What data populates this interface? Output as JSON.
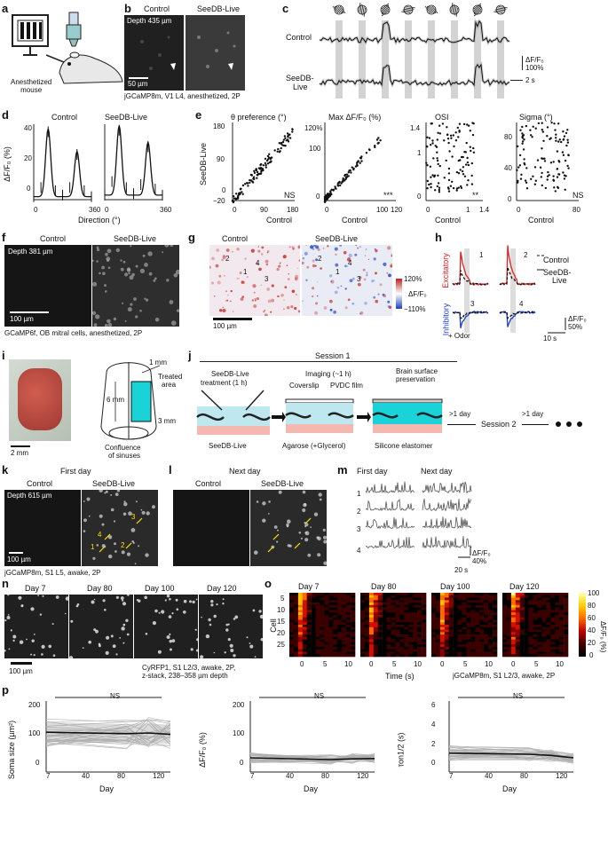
{
  "panels": {
    "a": {
      "label": "a",
      "caption": "Anesthetized\nmouse"
    },
    "b": {
      "label": "b",
      "col_left": "Control",
      "col_right": "SeeDB-Live",
      "depth": "Depth 435 µm",
      "scale": "50 µm",
      "caption": "jGCaMP8m, V1 L4, anesthetized, 2P"
    },
    "c": {
      "label": "c",
      "row1": "Control",
      "row2": "SeeDB-",
      "row2b": "Live",
      "scale_y": "ΔF/F₀",
      "scale_y2": "100%",
      "scale_x": "2 s"
    },
    "d": {
      "label": "d",
      "title_left": "Control",
      "title_right": "SeeDB-Live",
      "ylabel": "ΔF/F₀ (%)",
      "xlabel": "Direction (°)",
      "y_ticks": [
        "0",
        "20",
        "40"
      ],
      "x_ticks": [
        "0",
        "360"
      ]
    },
    "e": {
      "label": "e",
      "ylabel": "SeeDB-Live",
      "xlabel": "Control",
      "sub": [
        {
          "title": "θ preference (°)",
          "y_ticks": [
            "180",
            "90",
            "0",
            "−20"
          ],
          "x_ticks": [
            "0",
            "90",
            "180"
          ],
          "sig": "NS"
        },
        {
          "title": "Max ΔF/F₀ (%)",
          "y_ticks": [
            "120%",
            "100",
            "0"
          ],
          "x_ticks": [
            "0",
            "100",
            "120"
          ],
          "sig": "***"
        },
        {
          "title": "OSI",
          "y_ticks": [
            "1.4",
            "1",
            "0"
          ],
          "x_ticks": [
            "0",
            "1",
            "1.4"
          ],
          "sig": "**"
        },
        {
          "title": "Sigma (°)",
          "y_ticks": [
            "80",
            "40",
            "0"
          ],
          "x_ticks": [
            "0",
            "80"
          ],
          "sig": "NS"
        }
      ]
    },
    "f": {
      "label": "f",
      "col_left": "Control",
      "col_right": "SeeDB-Live",
      "depth": "Depth 381 µm",
      "scale": "100 µm",
      "caption": "GCaMP6f, OB mitral cells, anesthetized, 2P"
    },
    "g": {
      "label": "g",
      "col_left": "Control",
      "col_right": "SeeDB-Live",
      "scale": "100 µm",
      "cbar_top": "120%",
      "cbar_bottom": "−110%",
      "cbar_label": "ΔF/F₀",
      "cells": [
        "1",
        "2",
        "3",
        "4"
      ]
    },
    "h": {
      "label": "h",
      "legend_control": "Control",
      "legend_seedb": "SeeDB-",
      "legend_seedb2": "Live",
      "excitatory": "Excitatory",
      "inhibitory": "Inhibitory",
      "odor": "+ Odor",
      "scale_y": "ΔF/F₀",
      "scale_y2": "50%",
      "scale_x": "10 s",
      "cells": [
        "1",
        "2",
        "3",
        "4"
      ]
    },
    "i": {
      "label": "i",
      "scale": "2 mm",
      "dim1": "1 mm",
      "dim2": "6 mm",
      "dim3": "3 mm",
      "treated": "Treated",
      "treated2": "area",
      "sinus": "Confluence",
      "sinus2": "of sinuses"
    },
    "j": {
      "label": "j",
      "session1": "Session 1",
      "step1": "SeeDB-Live",
      "step1b": "treatment (1 h)",
      "step2": "Imaging (~1 h)",
      "step3": "Brain surface",
      "step3b": "preservation",
      "coverslip": "Coverslip",
      "pvdc": "PVDC film",
      "seedb": "SeeDB-Live",
      "agarose": "Agarose (+Glycerol)",
      "silicone": "Silicone elastomer",
      "gap1": ">1 day",
      "gap2": ">1 day",
      "session2": "Session 2"
    },
    "k": {
      "label": "k",
      "title": "First day",
      "col_left": "Control",
      "col_right": "SeeDB-Live",
      "depth": "Depth 615 µm",
      "scale": "100 µm",
      "caption": "jGCaMP8m, S1 L5, awake, 2P",
      "cells": [
        "3",
        "4",
        "1",
        "2"
      ]
    },
    "l": {
      "label": "l",
      "title": "Next day",
      "col_left": "Control",
      "col_right": "SeeDB-Live"
    },
    "m": {
      "label": "m",
      "first": "First day",
      "next": "Next day",
      "rows": [
        "1",
        "2",
        "3",
        "4"
      ],
      "scale_y": "ΔF/F₀",
      "scale_y2": "40%",
      "scale_x": "20 s"
    },
    "n": {
      "label": "n",
      "days": [
        "Day 7",
        "Day 80",
        "Day 100",
        "Day 120"
      ],
      "scale": "100 µm",
      "caption1": "CyRFP1, S1 L2/3, awake, 2P,",
      "caption2": "z-stack, 238–358 µm depth"
    },
    "o": {
      "label": "o",
      "days": [
        "Day 7",
        "Day 80",
        "Day 100",
        "Day 120"
      ],
      "ylabel": "Cell",
      "y_ticks": [
        "5",
        "10",
        "15",
        "20",
        "25"
      ],
      "x_ticks": [
        "0",
        "5",
        "10"
      ],
      "xlabel": "Time (s)",
      "caption": "jGCaMP8m, S1 L2/3, awake, 2P",
      "cbar_ticks": [
        "100",
        "80",
        "60",
        "40",
        "20",
        "0"
      ],
      "cbar_label": "ΔF/F₀ (%)"
    },
    "p": {
      "label": "p",
      "xlabel": "Day",
      "x_ticks": [
        "7",
        "40",
        "80",
        "120"
      ],
      "sub": [
        {
          "ylabel": "Soma size (µm²)",
          "y_ticks": [
            "200",
            "100",
            "0"
          ],
          "sig": "NS"
        },
        {
          "ylabel": "ΔF/F₀ (%)",
          "y_ticks": [
            "200",
            "100",
            "0"
          ],
          "sig": "NS"
        },
        {
          "ylabel": "τon1/2 (s)",
          "y_ticks": [
            "6",
            "4",
            "2",
            "0"
          ],
          "sig": "NS"
        }
      ]
    }
  },
  "colors": {
    "excitatory": "#e02020",
    "inhibitory": "#1a3fd6",
    "cyan": "#19d3d9",
    "pink": "#f3b3b3",
    "yellow": "#ffe100"
  },
  "chart_data": [
    {
      "type": "line",
      "panel": "d-control",
      "x": [
        0,
        45,
        90,
        135,
        180,
        225,
        270,
        315,
        360
      ],
      "y": [
        2,
        8,
        45,
        6,
        3,
        8,
        30,
        6,
        2
      ],
      "xlabel": "Direction (°)",
      "ylabel": "ΔF/F₀ (%)"
    },
    {
      "type": "line",
      "panel": "d-seedb",
      "x": [
        0,
        45,
        90,
        135,
        180,
        225,
        270,
        315,
        360
      ],
      "y": [
        3,
        12,
        46,
        8,
        4,
        10,
        35,
        7,
        3
      ],
      "xlabel": "Direction (°)",
      "ylabel": "ΔF/F₀ (%)"
    },
    {
      "type": "line",
      "panel": "p-soma",
      "x": [
        7,
        80,
        100,
        120
      ],
      "y": [
        112,
        108,
        110,
        106
      ],
      "ylim": [
        0,
        200
      ]
    },
    {
      "type": "line",
      "panel": "p-dff",
      "x": [
        7,
        80,
        100,
        120
      ],
      "y": [
        40,
        35,
        37,
        38
      ],
      "ylim": [
        0,
        200
      ]
    },
    {
      "type": "line",
      "panel": "p-tau",
      "x": [
        7,
        80,
        100,
        120
      ],
      "y": [
        1.6,
        1.5,
        1.4,
        1.2
      ],
      "ylim": [
        0,
        6
      ]
    }
  ]
}
